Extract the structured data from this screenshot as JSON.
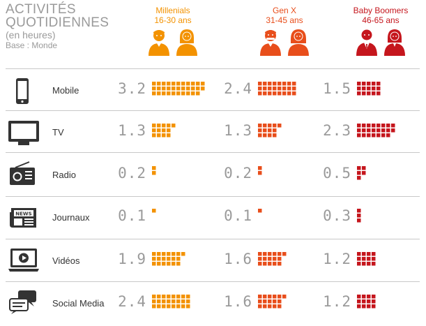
{
  "header": {
    "title_line1": "ACTIVITÉS",
    "title_line2": "QUOTIDIENNES",
    "subtitle": "(en heures)",
    "base": "Base : Monde"
  },
  "generations": [
    {
      "name": "Millenials",
      "ages": "16-30 ans",
      "color": "#f39200"
    },
    {
      "name": "Gen X",
      "ages": "31-45 ans",
      "color": "#e84e1b"
    },
    {
      "name": "Baby Boomers",
      "ages": "46-65 ans",
      "color": "#c5161d"
    }
  ],
  "chart_data": {
    "type": "table",
    "title": "ACTIVITÉS QUOTIDIENNES",
    "subtitle": "(en heures)",
    "note": "Base : Monde",
    "categories": [
      "Mobile",
      "TV",
      "Radio",
      "Journaux",
      "Vidéos",
      "Social Media"
    ],
    "icons": [
      "mobile-phone-icon",
      "tv-icon",
      "radio-icon",
      "newspaper-icon",
      "video-player-icon",
      "chat-bubbles-icon"
    ],
    "series": [
      {
        "name": "Millenials",
        "color": "#f39200",
        "values": [
          3.2,
          1.3,
          0.2,
          0.1,
          1.9,
          2.4
        ]
      },
      {
        "name": "Gen X",
        "color": "#e84e1b",
        "values": [
          2.4,
          1.3,
          0.2,
          0.1,
          1.6,
          1.6
        ]
      },
      {
        "name": "Baby Boomers",
        "color": "#c5161d",
        "values": [
          1.5,
          2.3,
          0.5,
          0.3,
          1.2,
          1.2
        ]
      }
    ],
    "value_labels": [
      [
        "3.2",
        "1.3",
        "0.2",
        "0.1",
        "1.9",
        "2.4"
      ],
      [
        "2.4",
        "1.3",
        "0.2",
        "0.1",
        "1.6",
        "1.6"
      ],
      [
        "1.5",
        "2.3",
        "0.5",
        "0.3",
        "1.2",
        "1.2"
      ]
    ]
  }
}
